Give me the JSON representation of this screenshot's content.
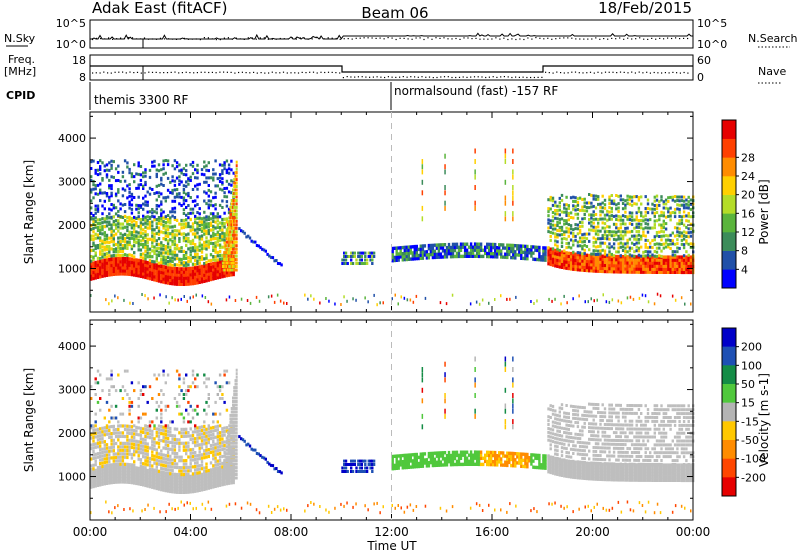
{
  "header": {
    "station": "Adak East (fitACF)",
    "beam": "Beam 06",
    "date": "18/Feb/2015"
  },
  "strip_labels": {
    "nsky": "N.Sky",
    "nsearch": "N.Search",
    "freq_line1": "Freq.",
    "freq_line2": "[MHz]",
    "nave": "Nave",
    "cpid": "CPID",
    "nsky_ticks": [
      "10^5",
      "10^0"
    ],
    "nsearch_ticks": [
      "10^5",
      "10^0"
    ],
    "freq_ticks": [
      "18",
      "8"
    ],
    "nave_ticks": [
      "60",
      "0"
    ]
  },
  "cpid_segments": [
    {
      "label": "themis 3300 RF",
      "start_hour": 0
    },
    {
      "label": "normalsound (fast) -157 RF",
      "start_hour": 12
    }
  ],
  "chart_data": [
    {
      "type": "heatmap",
      "title": "Power",
      "xlabel": "Time UT",
      "ylabel": "Slant Range [km]",
      "colorbar_label": "Power [dB]",
      "xlim": [
        0,
        24
      ],
      "ylim": [
        0,
        4600
      ],
      "x_ticks": [
        "00:00",
        "04:00",
        "08:00",
        "12:00",
        "16:00",
        "20:00",
        "00:00"
      ],
      "y_ticks": [
        1000,
        2000,
        3000,
        4000
      ],
      "colorbar_ticks": [
        "4",
        "8",
        "12",
        "16",
        "20",
        "24",
        "28"
      ],
      "colorbar_colors": [
        "#0000ff",
        "#2050a8",
        "#3c8c5a",
        "#5ab43c",
        "#b4dc28",
        "#ffd000",
        "#ff8c00",
        "#ff4000",
        "#e60000"
      ]
    },
    {
      "type": "heatmap",
      "title": "Velocity",
      "xlabel": "Time UT",
      "ylabel": "Slant Range [km]",
      "colorbar_label": "Velocity [m s-1]",
      "xlim": [
        0,
        24
      ],
      "ylim": [
        0,
        4600
      ],
      "x_ticks": [
        "00:00",
        "04:00",
        "08:00",
        "12:00",
        "16:00",
        "20:00",
        "00:00"
      ],
      "y_ticks": [
        1000,
        2000,
        3000,
        4000
      ],
      "colorbar_ticks": [
        "200",
        "100",
        "50",
        "15",
        "-15",
        "-50",
        "-100",
        "-200"
      ],
      "colorbar_colors": [
        "#0000c8",
        "#1e50b4",
        "#148c46",
        "#50c83c",
        "#b4b4b4",
        "#ffc800",
        "#ff8c00",
        "#ff4600",
        "#e60000"
      ]
    }
  ],
  "footer": {
    "time_label": "Time UT"
  },
  "colors": {
    "ground_scatter": "#bebebe"
  }
}
